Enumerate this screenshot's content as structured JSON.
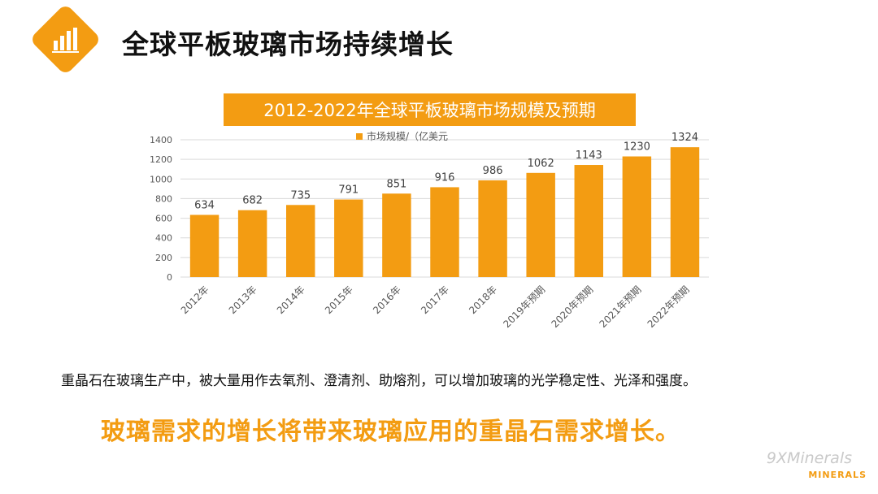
{
  "header": {
    "title": "全球平板玻璃市场持续增长",
    "icon": "bar-chart-icon",
    "accent": "#F39C12"
  },
  "chart_data": {
    "type": "bar",
    "title": "2012-2022年全球平板玻璃市场规模及预期",
    "legend": "top",
    "grid": true,
    "ylim": [
      0,
      1400
    ],
    "yticks": [
      0,
      200,
      400,
      600,
      800,
      1000,
      1200,
      1400
    ],
    "categories": [
      "2012年",
      "2013年",
      "2014年",
      "2015年",
      "2016年",
      "2017年",
      "2018年",
      "2019年预期",
      "2020年预期",
      "2021年预期",
      "2022年预期"
    ],
    "series": [
      {
        "name": "市场规模/（亿美元",
        "color": "#F39C12",
        "values": [
          634,
          682,
          735,
          791,
          851,
          916,
          986,
          1062,
          1143,
          1230,
          1324
        ]
      }
    ]
  },
  "body": {
    "text": "重晶石在玻璃生产中，被大量用作去氧剂、澄清剂、助熔剂，可以增加玻璃的光学稳定性、光泽和强度。",
    "highlight": "玻璃需求的增长将带来玻璃应用的重晶石需求增长。"
  },
  "watermark": {
    "text": "9XMinerals",
    "logo": "MINERALS"
  }
}
